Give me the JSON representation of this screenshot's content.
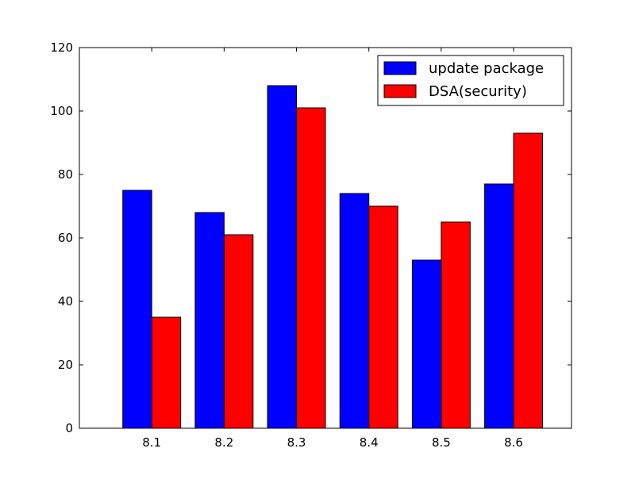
{
  "chart_data": {
    "type": "bar",
    "title": "",
    "xlabel": "",
    "ylabel": "",
    "categories": [
      "8.1",
      "8.2",
      "8.3",
      "8.4",
      "8.5",
      "8.6"
    ],
    "series": [
      {
        "name": "update package",
        "color": "#0000ff",
        "values": [
          75,
          68,
          108,
          74,
          53,
          77
        ]
      },
      {
        "name": "DSA(security)",
        "color": "#ff0000",
        "values": [
          35,
          61,
          101,
          70,
          65,
          93
        ]
      }
    ],
    "ylim": [
      0,
      120
    ],
    "yticks": [
      "0",
      "20",
      "40",
      "60",
      "80",
      "100",
      "120"
    ],
    "grid": false,
    "legend_position": "top-right"
  }
}
